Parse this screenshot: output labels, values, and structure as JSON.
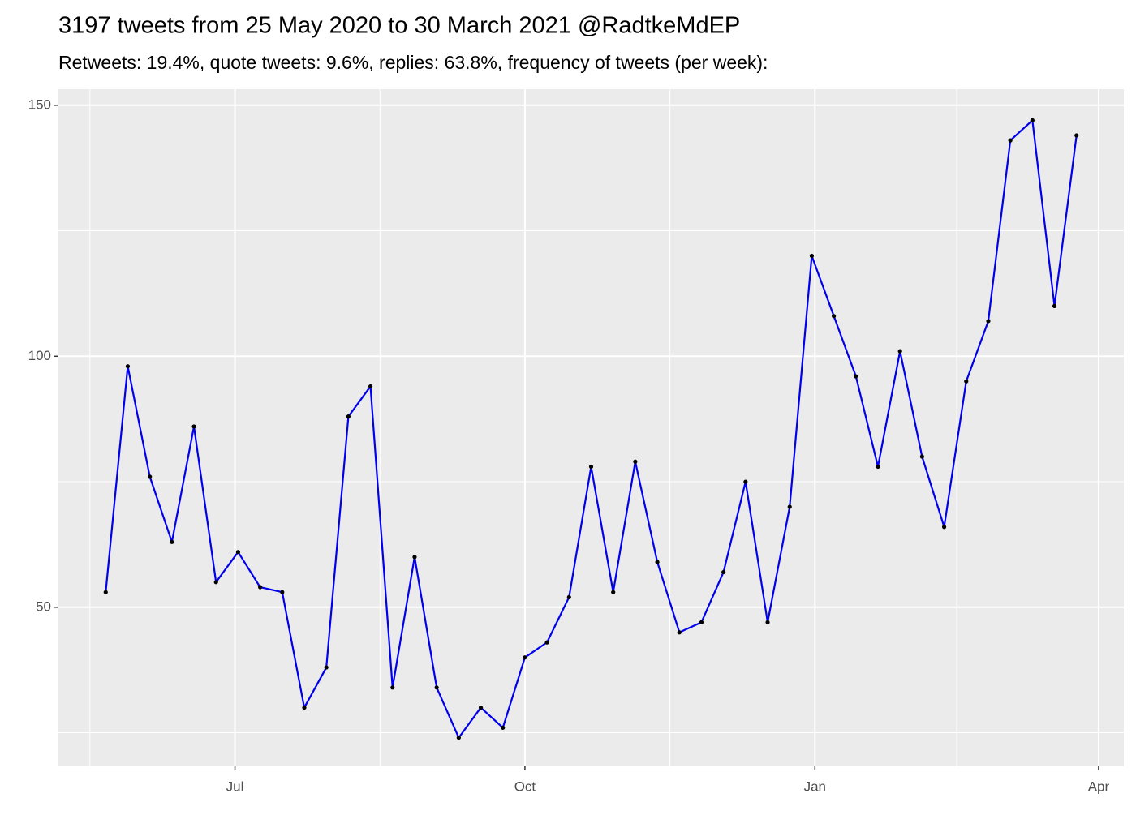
{
  "chart_data": {
    "type": "line",
    "title": "3197 tweets from 25 May 2020 to 30 March 2021 @RadtkeMdEP",
    "subtitle": "Retweets: 19.4%, quote tweets: 9.6%, replies: 63.8%, frequency of tweets (per week):",
    "x": [
      "2020-05-21",
      "2020-05-28",
      "2020-06-04",
      "2020-06-11",
      "2020-06-18",
      "2020-06-25",
      "2020-07-02",
      "2020-07-09",
      "2020-07-16",
      "2020-07-23",
      "2020-07-30",
      "2020-08-06",
      "2020-08-13",
      "2020-08-20",
      "2020-08-27",
      "2020-09-03",
      "2020-09-10",
      "2020-09-17",
      "2020-09-24",
      "2020-10-01",
      "2020-10-08",
      "2020-10-15",
      "2020-10-22",
      "2020-10-29",
      "2020-11-05",
      "2020-11-12",
      "2020-11-19",
      "2020-11-26",
      "2020-12-03",
      "2020-12-10",
      "2020-12-17",
      "2020-12-24",
      "2020-12-31",
      "2021-01-07",
      "2021-01-14",
      "2021-01-21",
      "2021-01-28",
      "2021-02-04",
      "2021-02-11",
      "2021-02-18",
      "2021-02-25",
      "2021-03-04",
      "2021-03-11",
      "2021-03-18",
      "2021-03-25"
    ],
    "values": [
      53,
      98,
      76,
      63,
      86,
      55,
      61,
      54,
      53,
      30,
      38,
      88,
      94,
      34,
      60,
      34,
      24,
      30,
      26,
      40,
      43,
      52,
      78,
      53,
      79,
      59,
      45,
      47,
      57,
      75,
      47,
      70,
      120,
      108,
      96,
      78,
      101,
      80,
      66,
      95,
      107,
      143,
      147,
      110,
      144
    ],
    "color": "#0000ee",
    "point_color": "#000000",
    "xlim": [
      "2020-05-06",
      "2021-04-09"
    ],
    "xticks": [
      {
        "value": "2020-07-01",
        "label": "Jul"
      },
      {
        "value": "2020-10-01",
        "label": "Oct"
      },
      {
        "value": "2021-01-01",
        "label": "Jan"
      },
      {
        "value": "2021-04-01",
        "label": "Apr"
      }
    ],
    "xminorticks": [
      "2020-05-16",
      "2020-08-16",
      "2020-11-16",
      "2021-02-15"
    ],
    "ylim": [
      18.3,
      153.2
    ],
    "yticks": [
      50,
      100,
      150
    ],
    "yminorticks": [
      25,
      75,
      125
    ],
    "grid": true
  }
}
